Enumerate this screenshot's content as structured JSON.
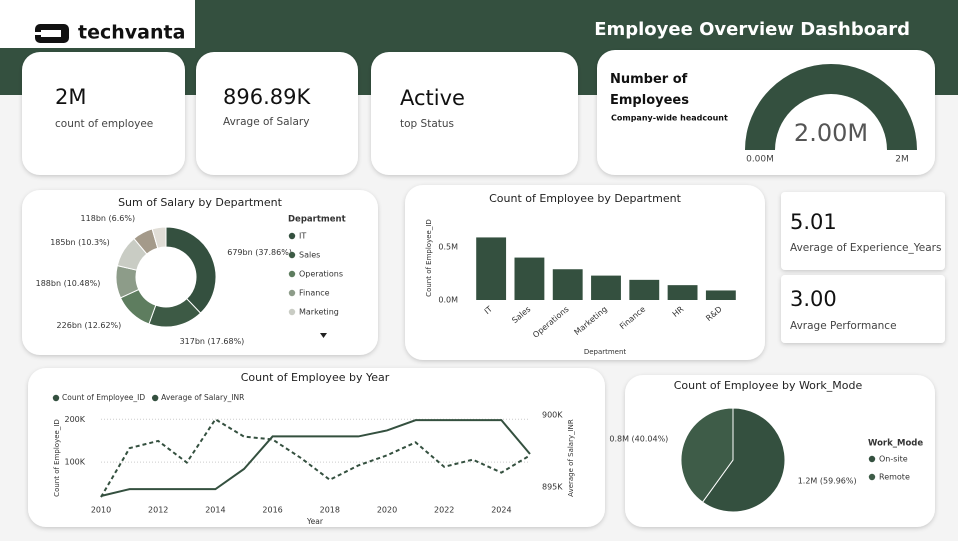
{
  "header": {
    "logo": "techvanta",
    "title": "Employee Overview Dashboard"
  },
  "kpis": [
    {
      "value": "2M",
      "label": "count of employee"
    },
    {
      "value": "896.89K",
      "label": "Avrage of Salary"
    },
    {
      "value": "Active",
      "label": "top Status"
    },
    {
      "value": "5.01",
      "label": "Average of Experience_Years"
    },
    {
      "value": "3.00",
      "label": "Avrage Performance"
    }
  ],
  "chart_data": [
    {
      "type": "gauge",
      "title": "Number of Employees",
      "subtitle": "Company-wide headcount",
      "value": 2,
      "value_label": "2.00M",
      "color": "#34503f",
      "ylim": [
        0,
        2
      ],
      "yticks": [
        {
          "value": 0,
          "label": "0.00M"
        },
        {
          "value": 2,
          "label": "2M"
        }
      ]
    },
    {
      "type": "donut",
      "title": "Sum of Salary by Department",
      "legend_title": "Department",
      "categories": [
        "IT",
        "Sales",
        "Operations",
        "Finance",
        "Marketing",
        null,
        null
      ],
      "values": [
        37.86,
        17.68,
        12.62,
        10.48,
        10.3,
        6.6,
        4.46
      ],
      "value_labels": [
        "679bn (37.86%)",
        "317bn (17.68%)",
        "226bn (12.62%)",
        "188bn (10.48%)",
        "185bn (10.3%)",
        "118bn (6.6%)",
        null
      ],
      "colors": [
        "#34503f",
        "#3d5a45",
        "#5e7d5f",
        "#8d9c89",
        "#c9ccc4",
        "#a49a8a",
        "#e0ddd6"
      ]
    },
    {
      "type": "bar",
      "title": "Count of Employee by Department",
      "x_label": "Department",
      "y_label": "Count of Employee_ID",
      "categories": [
        "IT",
        "Sales",
        "Operations",
        "Marketing",
        "Finance",
        "HR",
        "R&D"
      ],
      "values": [
        0.59,
        0.4,
        0.29,
        0.23,
        0.19,
        0.14,
        0.09
      ],
      "color": "#34503f",
      "ylim": [
        0,
        0.66
      ],
      "yticks": [
        {
          "value": 0,
          "label": "0.0M"
        },
        {
          "value": 0.5,
          "label": "0.5M"
        }
      ]
    },
    {
      "type": "line",
      "title": "Count of Employee by Year",
      "x_label": "Year",
      "y_label": "Count of Employee_ID",
      "y2_label": "Average of Salary_INR",
      "x": [
        2010,
        2011,
        2012,
        2013,
        2014,
        2015,
        2016,
        2017,
        2018,
        2019,
        2020,
        2021,
        2022,
        2023,
        2024,
        2025
      ],
      "series": [
        {
          "name": "Count of Employee_ID",
          "color": "#34503f",
          "line_style": "solid",
          "values": [
            21000,
            37000,
            37000,
            37000,
            37000,
            84000,
            160000,
            160000,
            160000,
            160000,
            174000,
            198000,
            198000,
            198000,
            198000,
            119000
          ]
        },
        {
          "name": "Average of Salary_INR",
          "color": "#34503f",
          "axis": "y2",
          "line_style": "dashed",
          "values": [
            894300,
            897700,
            898200,
            896700,
            899700,
            898500,
            898300,
            897000,
            895500,
            896500,
            897200,
            898100,
            896400,
            896900,
            896000,
            897200
          ]
        }
      ],
      "xlim": [
        2010,
        2025
      ],
      "xticks": [
        2010,
        2012,
        2014,
        2016,
        2018,
        2020,
        2022,
        2024
      ],
      "ylim": [
        0,
        210000
      ],
      "yticks": [
        {
          "value": 100000,
          "label": "100K"
        },
        {
          "value": 200000,
          "label": "200K"
        }
      ],
      "y2lim": [
        893750,
        900000
      ],
      "y2ticks": [
        {
          "value": 895000,
          "label": "895K"
        },
        {
          "value": 900000,
          "label": "900K"
        }
      ],
      "grid": true
    },
    {
      "type": "pie",
      "title": "Count of Employee by Work_Mode",
      "legend_title": "Work_Mode",
      "categories": [
        "On-site",
        "Remote"
      ],
      "values": [
        59.96,
        40.04
      ],
      "value_labels": [
        "1.2M (59.96%)",
        "0.8M (40.04%)"
      ],
      "colors": [
        "#34503f",
        "#3e5c48"
      ]
    }
  ]
}
